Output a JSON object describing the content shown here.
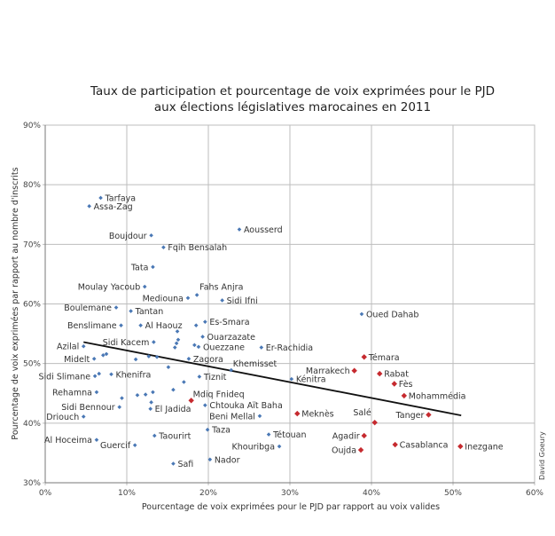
{
  "chart_data": {
    "type": "scatter",
    "title": [
      "Taux de participation et pourcentage de voix exprimées pour le PJD",
      "aux élections législatives marocaines en 2011"
    ],
    "xlabel": "Pourcentage de voix exprimées pour le PJD par rapport au voix valides",
    "ylabel": "Pourcentage de voix exprimées par rapport au nombre d'inscrits",
    "xlim": [
      0,
      60
    ],
    "ylim": [
      30,
      90
    ],
    "x_ticks": [
      "0%",
      "10%",
      "20%",
      "30%",
      "40%",
      "50%",
      "60%"
    ],
    "y_ticks": [
      "30%",
      "40%",
      "50%",
      "60%",
      "70%",
      "80%",
      "90%"
    ],
    "grid": true,
    "credit": "David Goeury",
    "colors": {
      "blue": "#4a78b5",
      "red": "#c62a2f",
      "trend": "#111111",
      "grid": "#bdbdbd"
    },
    "trendline": {
      "x": [
        4.7,
        51.0
      ],
      "y": [
        53.6,
        41.3
      ]
    },
    "points": [
      {
        "name": "Tarfaya",
        "x": 6.8,
        "y": 77.8,
        "group": "blue"
      },
      {
        "name": "Assa-Zag",
        "x": 5.4,
        "y": 76.4,
        "group": "blue"
      },
      {
        "name": "Boujdour",
        "x": 13.0,
        "y": 71.5,
        "group": "blue"
      },
      {
        "name": "Fqih Bensalah",
        "x": 14.5,
        "y": 69.5,
        "group": "blue"
      },
      {
        "name": "Aousserd",
        "x": 23.8,
        "y": 72.5,
        "group": "blue"
      },
      {
        "name": "Tata",
        "x": 13.2,
        "y": 66.2,
        "group": "blue"
      },
      {
        "name": "Moulay Yacoub",
        "x": 12.2,
        "y": 62.9,
        "group": "blue"
      },
      {
        "name": "Mediouna",
        "x": 17.5,
        "y": 61.0,
        "group": "blue"
      },
      {
        "name": "Fahs Anjra",
        "x": 18.6,
        "y": 61.5,
        "group": "blue"
      },
      {
        "name": "Sidi Ifni",
        "x": 21.7,
        "y": 60.6,
        "group": "blue"
      },
      {
        "name": "Boulemane",
        "x": 8.7,
        "y": 59.4,
        "group": "blue"
      },
      {
        "name": "Tantan",
        "x": 10.5,
        "y": 58.8,
        "group": "blue"
      },
      {
        "name": "Oued Dahab",
        "x": 38.8,
        "y": 58.3,
        "group": "blue"
      },
      {
        "name": "Benslimane",
        "x": 9.3,
        "y": 56.4,
        "group": "blue"
      },
      {
        "name": "Al Haouz",
        "x": 11.7,
        "y": 56.4,
        "group": "blue"
      },
      {
        "name": "",
        "x": 16.2,
        "y": 55.4,
        "group": "blue"
      },
      {
        "name": "",
        "x": 18.5,
        "y": 56.4,
        "group": "blue"
      },
      {
        "name": "Es-Smara",
        "x": 19.6,
        "y": 57.0,
        "group": "blue"
      },
      {
        "name": "Ouarzazate",
        "x": 19.3,
        "y": 54.5,
        "group": "blue"
      },
      {
        "name": "Azilal",
        "x": 4.7,
        "y": 52.9,
        "group": "blue"
      },
      {
        "name": "Sidi Kacem",
        "x": 13.3,
        "y": 53.6,
        "group": "blue"
      },
      {
        "name": "",
        "x": 16.3,
        "y": 54.0,
        "group": "blue"
      },
      {
        "name": "",
        "x": 16.1,
        "y": 53.4,
        "group": "blue"
      },
      {
        "name": "",
        "x": 15.9,
        "y": 52.7,
        "group": "blue"
      },
      {
        "name": "",
        "x": 18.3,
        "y": 53.1,
        "group": "blue"
      },
      {
        "name": "Ouezzane",
        "x": 18.8,
        "y": 52.8,
        "group": "blue"
      },
      {
        "name": "Er-Rachidia",
        "x": 26.5,
        "y": 52.7,
        "group": "blue"
      },
      {
        "name": "Midelt",
        "x": 6.0,
        "y": 50.8,
        "group": "blue"
      },
      {
        "name": "",
        "x": 7.1,
        "y": 51.4,
        "group": "blue"
      },
      {
        "name": "",
        "x": 7.5,
        "y": 51.6,
        "group": "blue"
      },
      {
        "name": "",
        "x": 11.1,
        "y": 50.7,
        "group": "blue"
      },
      {
        "name": "",
        "x": 12.7,
        "y": 51.2,
        "group": "blue"
      },
      {
        "name": "",
        "x": 13.7,
        "y": 51.1,
        "group": "blue"
      },
      {
        "name": "Zagora",
        "x": 17.6,
        "y": 50.8,
        "group": "blue"
      },
      {
        "name": "",
        "x": 15.1,
        "y": 49.4,
        "group": "blue"
      },
      {
        "name": "Khemisset",
        "x": 22.8,
        "y": 48.9,
        "group": "blue"
      },
      {
        "name": "Kénitra",
        "x": 30.2,
        "y": 47.4,
        "group": "blue"
      },
      {
        "name": "Sidi Slimane",
        "x": 6.1,
        "y": 47.9,
        "group": "blue"
      },
      {
        "name": "",
        "x": 6.6,
        "y": 48.3,
        "group": "blue"
      },
      {
        "name": "Khenifra",
        "x": 8.1,
        "y": 48.2,
        "group": "blue"
      },
      {
        "name": "Tiznit",
        "x": 18.9,
        "y": 47.8,
        "group": "blue"
      },
      {
        "name": "",
        "x": 17.0,
        "y": 46.9,
        "group": "blue"
      },
      {
        "name": "Rehamna",
        "x": 6.3,
        "y": 45.2,
        "group": "blue"
      },
      {
        "name": "",
        "x": 9.4,
        "y": 44.2,
        "group": "blue"
      },
      {
        "name": "",
        "x": 11.3,
        "y": 44.7,
        "group": "blue"
      },
      {
        "name": "",
        "x": 12.3,
        "y": 44.8,
        "group": "blue"
      },
      {
        "name": "",
        "x": 13.2,
        "y": 45.2,
        "group": "blue"
      },
      {
        "name": "",
        "x": 15.7,
        "y": 45.6,
        "group": "blue"
      },
      {
        "name": "",
        "x": 13.0,
        "y": 43.5,
        "group": "blue"
      },
      {
        "name": "Mdiq Fnideq",
        "x": 17.9,
        "y": 43.8,
        "group": "red"
      },
      {
        "name": "Chtouka Aït Baha",
        "x": 19.6,
        "y": 43.0,
        "group": "blue"
      },
      {
        "name": "Sidi Bennour",
        "x": 9.1,
        "y": 42.7,
        "group": "blue"
      },
      {
        "name": "El Jadida",
        "x": 12.9,
        "y": 42.4,
        "group": "blue"
      },
      {
        "name": "Driouch",
        "x": 4.7,
        "y": 41.1,
        "group": "blue"
      },
      {
        "name": "Beni Mellal",
        "x": 26.3,
        "y": 41.2,
        "group": "blue"
      },
      {
        "name": "Taza",
        "x": 19.9,
        "y": 38.9,
        "group": "blue"
      },
      {
        "name": "Al Hoceima",
        "x": 6.3,
        "y": 37.2,
        "group": "blue"
      },
      {
        "name": "Taourirt",
        "x": 13.4,
        "y": 37.9,
        "group": "blue"
      },
      {
        "name": "Guercif",
        "x": 11.0,
        "y": 36.3,
        "group": "blue"
      },
      {
        "name": "Nador",
        "x": 20.2,
        "y": 33.9,
        "group": "blue"
      },
      {
        "name": "Safi",
        "x": 15.7,
        "y": 33.2,
        "group": "blue"
      },
      {
        "name": "Tétouan",
        "x": 27.4,
        "y": 38.1,
        "group": "blue"
      },
      {
        "name": "Khouribga",
        "x": 28.7,
        "y": 36.1,
        "group": "blue"
      },
      {
        "name": "Témara",
        "x": 39.1,
        "y": 51.1,
        "group": "red"
      },
      {
        "name": "Marrakech",
        "x": 37.9,
        "y": 48.8,
        "group": "red"
      },
      {
        "name": "Rabat",
        "x": 41.0,
        "y": 48.3,
        "group": "red"
      },
      {
        "name": "Fès",
        "x": 42.8,
        "y": 46.6,
        "group": "red"
      },
      {
        "name": "Mohammédia",
        "x": 44.0,
        "y": 44.6,
        "group": "red"
      },
      {
        "name": "Tanger",
        "x": 47.0,
        "y": 41.4,
        "group": "red"
      },
      {
        "name": "Meknès",
        "x": 30.9,
        "y": 41.6,
        "group": "red"
      },
      {
        "name": "Salé",
        "x": 40.4,
        "y": 40.1,
        "group": "red"
      },
      {
        "name": "Agadir",
        "x": 39.1,
        "y": 37.9,
        "group": "red"
      },
      {
        "name": "Oujda",
        "x": 38.7,
        "y": 35.5,
        "group": "red"
      },
      {
        "name": "Casablanca",
        "x": 42.9,
        "y": 36.4,
        "group": "red"
      },
      {
        "name": "Inezgane",
        "x": 50.9,
        "y": 36.1,
        "group": "red"
      }
    ]
  }
}
